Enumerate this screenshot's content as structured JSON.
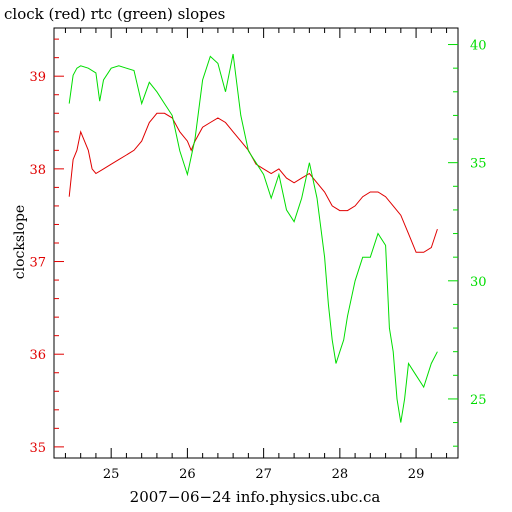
{
  "chart_data": {
    "type": "line",
    "title": "clock (red) rtc (green) slopes",
    "xlabel": "2007−06−24 info.physics.ubc.ca",
    "ylabel": "clockslope",
    "xlim": [
      24.25,
      29.55
    ],
    "ylim": [
      34.88,
      39.52
    ],
    "y2lim": [
      22.5,
      40.7
    ],
    "x_ticks": [
      "25",
      "26",
      "27",
      "28",
      "29"
    ],
    "y_ticks": [
      "35",
      "36",
      "37",
      "38",
      "39"
    ],
    "y2_ticks": [
      "25",
      "30",
      "35",
      "40"
    ],
    "grid": false,
    "series": [
      {
        "name": "clock",
        "color": "#e00000",
        "axis": "left",
        "x": [
          24.45,
          24.5,
          24.55,
          24.6,
          24.65,
          24.7,
          24.75,
          24.8,
          24.9,
          25.0,
          25.1,
          25.2,
          25.3,
          25.4,
          25.45,
          25.5,
          25.55,
          25.6,
          25.7,
          25.8,
          25.9,
          26.0,
          26.05,
          26.1,
          26.2,
          26.3,
          26.4,
          26.5,
          26.6,
          26.7,
          26.8,
          26.9,
          27.0,
          27.1,
          27.2,
          27.3,
          27.4,
          27.5,
          27.6,
          27.7,
          27.8,
          27.9,
          28.0,
          28.1,
          28.2,
          28.3,
          28.4,
          28.5,
          28.6,
          28.7,
          28.8,
          28.9,
          29.0,
          29.1,
          29.2,
          29.28
        ],
        "y": [
          37.7,
          38.1,
          38.2,
          38.4,
          38.3,
          38.2,
          38.0,
          37.95,
          38.0,
          38.05,
          38.1,
          38.15,
          38.2,
          38.3,
          38.4,
          38.5,
          38.55,
          38.6,
          38.6,
          38.55,
          38.4,
          38.3,
          38.2,
          38.3,
          38.45,
          38.5,
          38.55,
          38.5,
          38.4,
          38.3,
          38.2,
          38.05,
          38.0,
          37.95,
          38.0,
          37.9,
          37.85,
          37.9,
          37.95,
          37.85,
          37.75,
          37.6,
          37.55,
          37.55,
          37.6,
          37.7,
          37.75,
          37.75,
          37.7,
          37.6,
          37.5,
          37.3,
          37.1,
          37.1,
          37.15,
          37.35
        ]
      },
      {
        "name": "rtc",
        "color": "#00dd00",
        "axis": "right",
        "x": [
          24.45,
          24.5,
          24.55,
          24.6,
          24.7,
          24.8,
          24.85,
          24.9,
          25.0,
          25.1,
          25.2,
          25.3,
          25.4,
          25.5,
          25.6,
          25.7,
          25.8,
          25.9,
          26.0,
          26.1,
          26.2,
          26.3,
          26.4,
          26.5,
          26.6,
          26.7,
          26.8,
          26.9,
          27.0,
          27.1,
          27.2,
          27.3,
          27.4,
          27.5,
          27.6,
          27.7,
          27.8,
          27.85,
          27.9,
          27.95,
          28.0,
          28.05,
          28.1,
          28.2,
          28.3,
          28.4,
          28.5,
          28.6,
          28.65,
          28.7,
          28.75,
          28.8,
          28.85,
          28.9,
          29.0,
          29.1,
          29.2,
          29.28
        ],
        "y": [
          37.5,
          38.7,
          39.0,
          39.1,
          39.0,
          38.8,
          37.6,
          38.5,
          39.0,
          39.1,
          39.0,
          38.9,
          37.5,
          38.4,
          38.0,
          37.5,
          37.0,
          35.5,
          34.5,
          36.0,
          38.5,
          39.5,
          39.2,
          38.0,
          39.6,
          37.0,
          35.5,
          35.0,
          34.5,
          33.5,
          34.5,
          33.0,
          32.5,
          33.5,
          35.0,
          33.5,
          31.0,
          29.0,
          27.5,
          26.5,
          27.0,
          27.5,
          28.5,
          30.0,
          31.0,
          31.0,
          32.0,
          31.5,
          28.0,
          27.0,
          25.0,
          24.0,
          25.0,
          26.5,
          26.0,
          25.5,
          26.5,
          27.0
        ]
      }
    ]
  }
}
